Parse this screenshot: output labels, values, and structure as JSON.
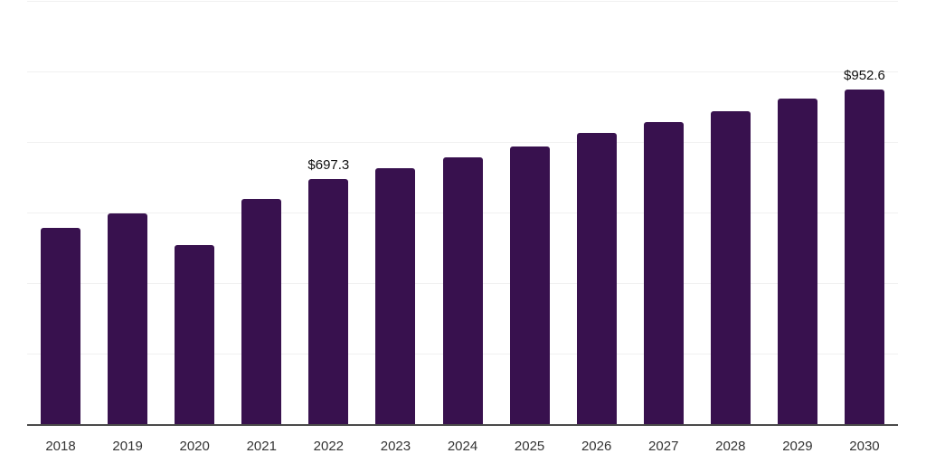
{
  "chart_data": {
    "type": "bar",
    "title": "",
    "xlabel": "",
    "ylabel": "",
    "categories": [
      "2018",
      "2019",
      "2020",
      "2021",
      "2022",
      "2023",
      "2024",
      "2025",
      "2026",
      "2027",
      "2028",
      "2029",
      "2030"
    ],
    "values": [
      559,
      600,
      510,
      642,
      697.3,
      727,
      759,
      791,
      827,
      860,
      890,
      925,
      952.6
    ],
    "point_labels": [
      "",
      "",
      "",
      "",
      "$697.3",
      "",
      "",
      "",
      "",
      "",
      "",
      "",
      "$952.6"
    ],
    "labeled_points": [
      {
        "category": "2022",
        "label": "$697.3"
      },
      {
        "category": "2030",
        "label": "$952.6"
      }
    ],
    "ylim": [
      0,
      1200
    ],
    "gridline_interval": 200,
    "grid": "horizontal-only",
    "legend": "none",
    "colors": {
      "bar": "#38114E",
      "axis_line": "#4A4A4A",
      "gridline": "#F1F1F1",
      "tick_label": "#333333",
      "value_label": "#111111",
      "background": "#FFFFFF"
    }
  }
}
